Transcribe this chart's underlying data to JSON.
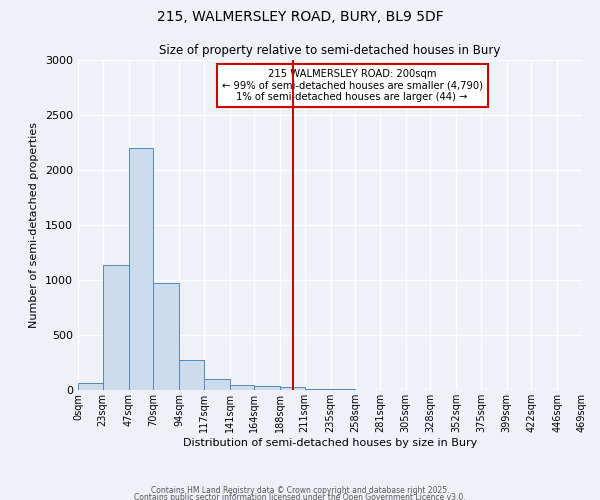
{
  "title_line1": "215, WALMERSLEY ROAD, BURY, BL9 5DF",
  "title_line2": "Size of property relative to semi-detached houses in Bury",
  "xlabel": "Distribution of semi-detached houses by size in Bury",
  "ylabel": "Number of semi-detached properties",
  "bin_labels": [
    "0sqm",
    "23sqm",
    "47sqm",
    "70sqm",
    "94sqm",
    "117sqm",
    "141sqm",
    "164sqm",
    "188sqm",
    "211sqm",
    "235sqm",
    "258sqm",
    "281sqm",
    "305sqm",
    "328sqm",
    "352sqm",
    "375sqm",
    "399sqm",
    "422sqm",
    "446sqm",
    "469sqm"
  ],
  "bin_edges": [
    0,
    23,
    47,
    70,
    94,
    117,
    141,
    164,
    188,
    211,
    235,
    258,
    281,
    305,
    328,
    352,
    375,
    399,
    422,
    446,
    469
  ],
  "bar_heights": [
    60,
    1140,
    2200,
    970,
    270,
    100,
    50,
    35,
    30,
    10,
    5,
    3,
    2,
    1,
    1,
    0,
    0,
    0,
    0,
    0
  ],
  "bar_color": "#ccdcec",
  "bar_edge_color": "#5588bb",
  "property_value": 200,
  "vline_color": "#cc0000",
  "annotation_text": "215 WALMERSLEY ROAD: 200sqm\n← 99% of semi-detached houses are smaller (4,790)\n1% of semi-detached houses are larger (44) →",
  "annotation_box_color": "#cc0000",
  "annotation_fill": "white",
  "ylim": [
    0,
    3000
  ],
  "yticks": [
    0,
    500,
    1000,
    1500,
    2000,
    2500,
    3000
  ],
  "background_color": "#eef2f8",
  "grid_color": "white",
  "footer_line1": "Contains HM Land Registry data © Crown copyright and database right 2025.",
  "footer_line2": "Contains public sector information licensed under the Open Government Licence v3.0."
}
